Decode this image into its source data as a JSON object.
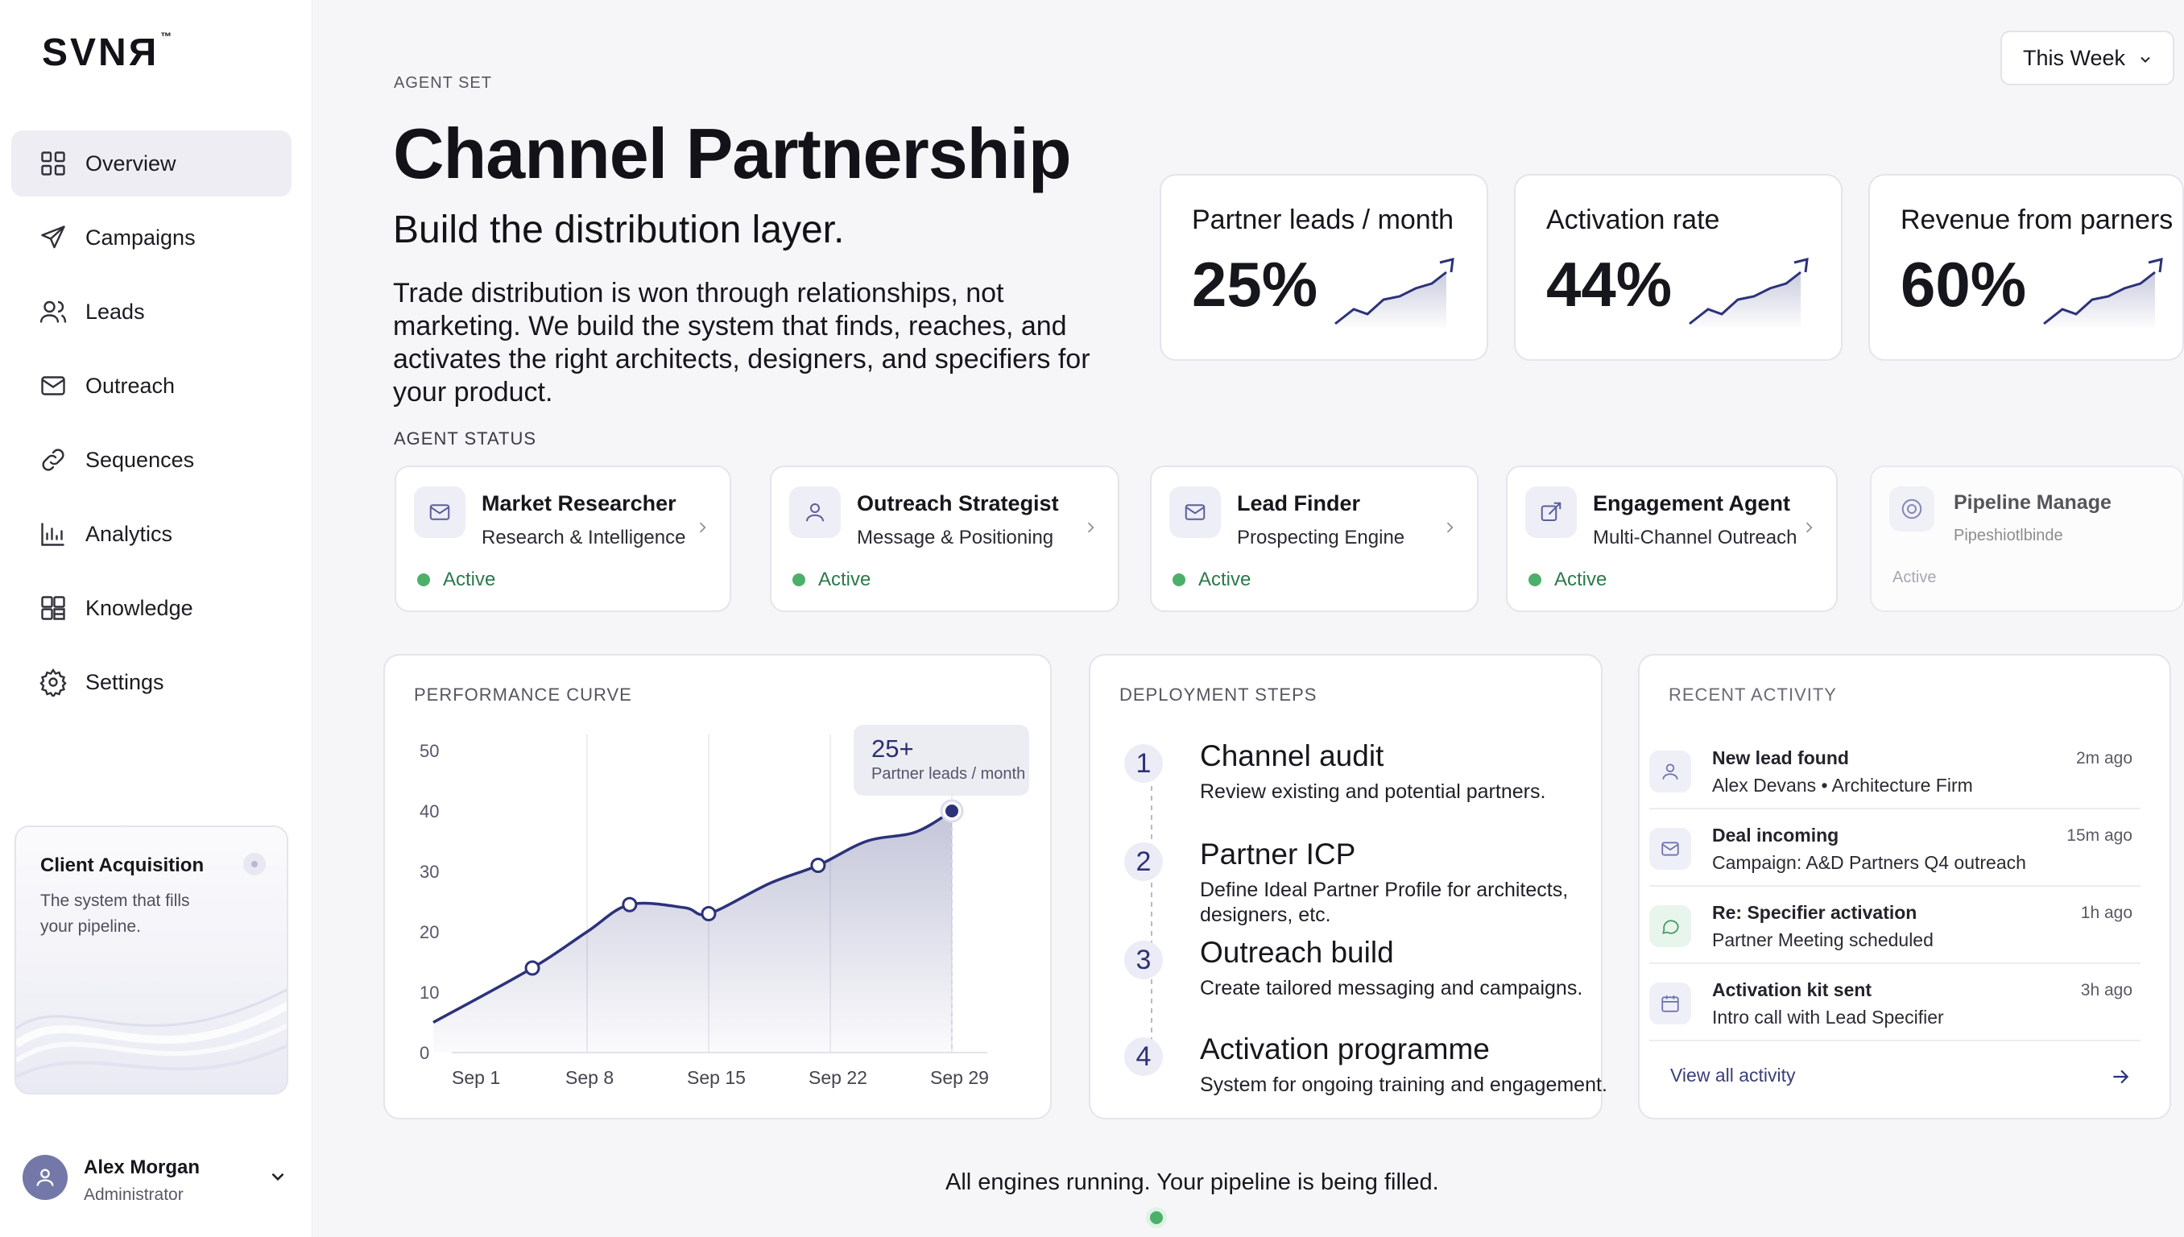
{
  "brand": {
    "logo": "SVNЯ",
    "tm": "™"
  },
  "nav": [
    {
      "label": "Overview",
      "icon": "grid-icon",
      "active": true
    },
    {
      "label": "Campaigns",
      "icon": "send-icon"
    },
    {
      "label": "Leads",
      "icon": "users-icon"
    },
    {
      "label": "Outreach",
      "icon": "mail-icon"
    },
    {
      "label": "Sequences",
      "icon": "link-icon"
    },
    {
      "label": "Analytics",
      "icon": "bar-chart-icon"
    },
    {
      "label": "Knowledge",
      "icon": "book-icon"
    },
    {
      "label": "Settings",
      "icon": "gear-icon"
    }
  ],
  "client_card": {
    "title": "Client Acquisition",
    "subtitle": "The system that fills your pipeline."
  },
  "user": {
    "name": "Alex Morgan",
    "role": "Administrator"
  },
  "date_filter": {
    "label": "This Week"
  },
  "header": {
    "eyebrow": "AGENT SET",
    "title": "Channel Partnership",
    "subtitle": "Build the distribution layer.",
    "description": "Trade distribution is won through relationships, not marketing. We build the system that finds, reaches, and activates the right architects, designers, and specifiers for your product."
  },
  "kpis": [
    {
      "label": "Partner leads / month",
      "value": "25%"
    },
    {
      "label": "Activation rate",
      "value": "44%"
    },
    {
      "label": "Revenue from parners",
      "value": "60%"
    }
  ],
  "agent_status": {
    "heading": "AGENT STATUS",
    "agents": [
      {
        "name": "Market Researcher",
        "role": "Research & Intelligence",
        "status": "Active",
        "icon": "mail-icon"
      },
      {
        "name": "Outreach Strategist",
        "role": "Message & Positioning",
        "status": "Active",
        "icon": "user-icon"
      },
      {
        "name": "Lead Finder",
        "role": "Prospecting Engine",
        "status": "Active",
        "icon": "mail-icon"
      },
      {
        "name": "Engagement Agent",
        "role": "Multi-Channel Outreach",
        "status": "Active",
        "icon": "share-icon"
      },
      {
        "name": "Pipeline Manage",
        "role": "Pipeshiotlbinde",
        "status": "Active",
        "icon": "target-icon"
      }
    ]
  },
  "performance": {
    "heading": "PERFORMANCE CURVE",
    "tooltip": {
      "value": "25+",
      "label": "Partner leads / month"
    },
    "accent": "#2c3279"
  },
  "chart_data": {
    "type": "area",
    "title": "",
    "x": [
      "Sep 1",
      "Sep 8",
      "Sep 15",
      "Sep 22",
      "Sep 29"
    ],
    "xlabel": "",
    "ylabel": "",
    "ylim": [
      0,
      50
    ],
    "yticks": [
      0,
      10,
      20,
      30,
      40,
      50
    ],
    "grid": "vertical",
    "series": [
      {
        "points": [
          {
            "x": 0.0,
            "y": 5
          },
          {
            "x": 0.55,
            "y": 14,
            "marker": true
          },
          {
            "x": 1.0,
            "y": 20
          },
          {
            "x": 1.35,
            "y": 24.5,
            "marker": true
          },
          {
            "x": 1.8,
            "y": 24
          },
          {
            "x": 2.0,
            "y": 23,
            "marker": true
          },
          {
            "x": 2.5,
            "y": 28
          },
          {
            "x": 2.9,
            "y": 31,
            "marker": true
          },
          {
            "x": 3.3,
            "y": 35
          },
          {
            "x": 3.7,
            "y": 36.5
          },
          {
            "x": 4.0,
            "y": 40,
            "marker": true,
            "highlight": true
          }
        ]
      }
    ]
  },
  "deployment": {
    "heading": "DEPLOYMENT STEPS",
    "steps": [
      {
        "num": "1",
        "title": "Channel audit",
        "desc": "Review existing and potential partners."
      },
      {
        "num": "2",
        "title": "Partner ICP",
        "desc": "Define Ideal Partner Profile for architects, designers, etc."
      },
      {
        "num": "3",
        "title": "Outreach build",
        "desc": "Create tailored messaging and campaigns."
      },
      {
        "num": "4",
        "title": "Activation programme",
        "desc": "System for ongoing training and engagement."
      }
    ]
  },
  "activity": {
    "heading": "RECENT ACTIVITY",
    "items": [
      {
        "title": "New lead found",
        "sub": "Alex Devans • Architecture Firm",
        "time": "2m ago",
        "icon": "user-icon",
        "tint": "#efeff7"
      },
      {
        "title": "Deal incoming",
        "sub": "Campaign: A&D Partners Q4 outreach",
        "time": "15m ago",
        "icon": "mail-icon",
        "tint": "#efeff7"
      },
      {
        "title": "Re: Specifier activation",
        "sub": "Partner Meeting scheduled",
        "time": "1h ago",
        "icon": "chat-icon",
        "tint": "#e8f5ec"
      },
      {
        "title": "Activation kit sent",
        "sub": "Intro call with Lead Specifier",
        "time": "3h ago",
        "icon": "calendar-icon",
        "tint": "#efeff7"
      }
    ],
    "view_all": "View all activity"
  },
  "footer": {
    "message": "All engines running. Your pipeline is being filled."
  }
}
